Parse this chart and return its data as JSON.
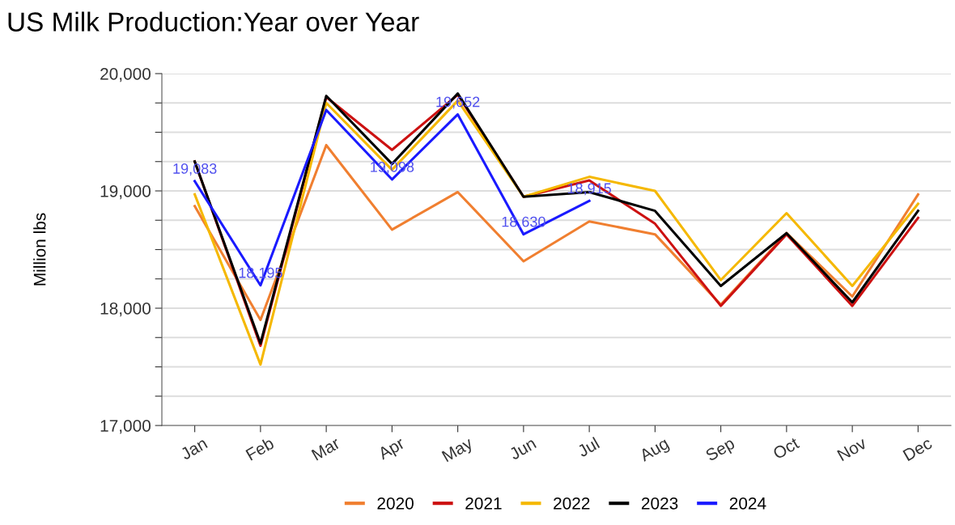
{
  "chart_data": {
    "type": "line",
    "title": "US Milk Production:Year over Year",
    "ylabel": "Million lbs",
    "categories": [
      "Jan",
      "Feb",
      "Mar",
      "Apr",
      "May",
      "Jun",
      "Jul",
      "Aug",
      "Sep",
      "Oct",
      "Nov",
      "Dec"
    ],
    "series": [
      {
        "name": "2020",
        "color": "#f07f30",
        "values": [
          18870,
          17900,
          19390,
          18670,
          18990,
          18400,
          18740,
          18630,
          18030,
          18640,
          18100,
          18970
        ]
      },
      {
        "name": "2021",
        "color": "#cc1111",
        "values": [
          19250,
          17680,
          19800,
          19350,
          19820,
          18950,
          19090,
          18720,
          18020,
          18630,
          18020,
          18770
        ]
      },
      {
        "name": "2022",
        "color": "#f5b800",
        "values": [
          18970,
          17520,
          19750,
          19180,
          19770,
          18950,
          19120,
          19000,
          18240,
          18810,
          18190,
          18890
        ]
      },
      {
        "name": "2023",
        "color": "#000000",
        "values": [
          19250,
          17700,
          19810,
          19230,
          19830,
          18950,
          18990,
          18830,
          18190,
          18640,
          18050,
          18830
        ]
      },
      {
        "name": "2024",
        "color": "#1a1aff",
        "values": [
          19083,
          18195,
          19690,
          19098,
          19652,
          18630,
          18915,
          null,
          null,
          null,
          null,
          null
        ],
        "value_labels": [
          "19,083",
          "18,195",
          null,
          "19,098",
          "19,652",
          "18,630",
          "18,915",
          null,
          null,
          null,
          null,
          null
        ]
      }
    ],
    "ylim": [
      17000,
      20000
    ],
    "yticks": [
      {
        "value": 17000,
        "label": "17,000"
      },
      {
        "value": 17250,
        "label": null
      },
      {
        "value": 17500,
        "label": null
      },
      {
        "value": 17750,
        "label": null
      },
      {
        "value": 18000,
        "label": "18,000"
      },
      {
        "value": 18250,
        "label": null
      },
      {
        "value": 18500,
        "label": null
      },
      {
        "value": 18750,
        "label": null
      },
      {
        "value": 19000,
        "label": "19,000"
      },
      {
        "value": 19250,
        "label": null
      },
      {
        "value": 19500,
        "label": null
      },
      {
        "value": 19750,
        "label": null
      },
      {
        "value": 20000,
        "label": "20,000"
      }
    ],
    "grid": "y",
    "legend": "bottom",
    "marker": "none",
    "line_style": "solid"
  }
}
